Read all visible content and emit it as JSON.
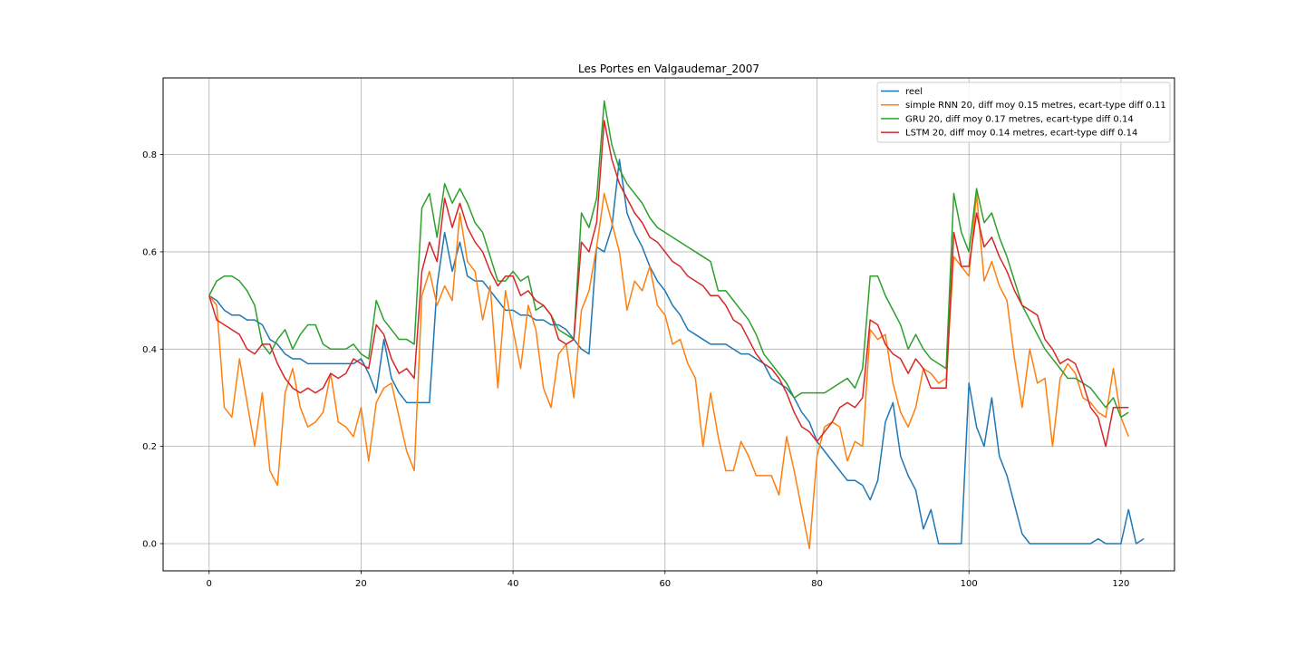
{
  "chart_data": {
    "type": "line",
    "title": "Les Portes en Valgaudemar_2007",
    "xlabel": "",
    "ylabel": "",
    "xlim": [
      -6.05,
      127.05
    ],
    "ylim": [
      -0.0559,
      0.9576
    ],
    "xticks": [
      0,
      20,
      40,
      60,
      80,
      100,
      120
    ],
    "xtick_labels": [
      "0",
      "20",
      "40",
      "60",
      "80",
      "100",
      "120"
    ],
    "yticks": [
      0.0,
      0.2,
      0.4,
      0.6,
      0.8
    ],
    "ytick_labels": [
      "0.0",
      "0.2",
      "0.4",
      "0.6",
      "0.8"
    ],
    "grid": true,
    "legend_position": "top-right",
    "series": [
      {
        "name": "reel",
        "color": "#1f77b4",
        "values": [
          0.51,
          0.5,
          0.48,
          0.47,
          0.47,
          0.46,
          0.46,
          0.45,
          0.42,
          0.41,
          0.39,
          0.38,
          0.38,
          0.37,
          0.37,
          0.37,
          0.37,
          0.37,
          0.37,
          0.37,
          0.38,
          0.35,
          0.31,
          0.42,
          0.34,
          0.31,
          0.29,
          0.29,
          0.29,
          0.29,
          0.53,
          0.64,
          0.56,
          0.62,
          0.55,
          0.54,
          0.54,
          0.52,
          0.5,
          0.48,
          0.48,
          0.47,
          0.47,
          0.46,
          0.46,
          0.45,
          0.45,
          0.44,
          0.42,
          0.4,
          0.39,
          0.61,
          0.6,
          0.65,
          0.79,
          0.68,
          0.64,
          0.61,
          0.57,
          0.54,
          0.52,
          0.49,
          0.47,
          0.44,
          0.43,
          0.42,
          0.41,
          0.41,
          0.41,
          0.4,
          0.39,
          0.39,
          0.38,
          0.37,
          0.34,
          0.33,
          0.32,
          0.3,
          0.27,
          0.25,
          0.21,
          0.19,
          0.17,
          0.15,
          0.13,
          0.13,
          0.12,
          0.09,
          0.13,
          0.25,
          0.29,
          0.18,
          0.14,
          0.11,
          0.03,
          0.07,
          0.0,
          0.0,
          0.0,
          0.0,
          0.33,
          0.24,
          0.2,
          0.3,
          0.18,
          0.14,
          0.08,
          0.02,
          0.0,
          0.0,
          0.0,
          0.0,
          0.0,
          0.0,
          0.0,
          0.0,
          0.0,
          0.01,
          0.0,
          0.0,
          0.0,
          0.07,
          0.0,
          0.01
        ]
      },
      {
        "name": "simple RNN 20, diff moy 0.15 metres, ecart-type diff 0.11",
        "color": "#ff7f0e",
        "values": [
          0.51,
          0.49,
          0.28,
          0.26,
          0.38,
          0.29,
          0.2,
          0.31,
          0.15,
          0.12,
          0.31,
          0.36,
          0.28,
          0.24,
          0.25,
          0.27,
          0.35,
          0.25,
          0.24,
          0.22,
          0.28,
          0.17,
          0.29,
          0.32,
          0.33,
          0.26,
          0.19,
          0.15,
          0.51,
          0.56,
          0.49,
          0.53,
          0.5,
          0.68,
          0.58,
          0.56,
          0.46,
          0.53,
          0.32,
          0.52,
          0.44,
          0.36,
          0.49,
          0.44,
          0.32,
          0.28,
          0.39,
          0.41,
          0.3,
          0.48,
          0.52,
          0.61,
          0.72,
          0.66,
          0.6,
          0.48,
          0.54,
          0.52,
          0.57,
          0.49,
          0.47,
          0.41,
          0.42,
          0.37,
          0.34,
          0.2,
          0.31,
          0.22,
          0.15,
          0.15,
          0.21,
          0.18,
          0.14,
          0.14,
          0.14,
          0.1,
          0.22,
          0.15,
          0.07,
          -0.01,
          0.18,
          0.24,
          0.25,
          0.24,
          0.17,
          0.21,
          0.2,
          0.44,
          0.42,
          0.43,
          0.33,
          0.27,
          0.24,
          0.28,
          0.36,
          0.35,
          0.33,
          0.34,
          0.59,
          0.57,
          0.55,
          0.72,
          0.54,
          0.58,
          0.53,
          0.5,
          0.38,
          0.28,
          0.4,
          0.33,
          0.34,
          0.2,
          0.34,
          0.37,
          0.35,
          0.3,
          0.29,
          0.27,
          0.26,
          0.36,
          0.26,
          0.22
        ]
      },
      {
        "name": "GRU 20, diff moy 0.17 metres, ecart-type diff 0.14",
        "color": "#2ca02c",
        "values": [
          0.51,
          0.54,
          0.55,
          0.55,
          0.54,
          0.52,
          0.49,
          0.41,
          0.39,
          0.42,
          0.44,
          0.4,
          0.43,
          0.45,
          0.45,
          0.41,
          0.4,
          0.4,
          0.4,
          0.41,
          0.39,
          0.38,
          0.5,
          0.46,
          0.44,
          0.42,
          0.42,
          0.41,
          0.69,
          0.72,
          0.63,
          0.74,
          0.7,
          0.73,
          0.7,
          0.66,
          0.64,
          0.59,
          0.54,
          0.54,
          0.56,
          0.54,
          0.55,
          0.48,
          0.49,
          0.47,
          0.44,
          0.43,
          0.42,
          0.68,
          0.65,
          0.71,
          0.91,
          0.82,
          0.77,
          0.74,
          0.72,
          0.7,
          0.67,
          0.65,
          0.64,
          0.63,
          0.62,
          0.61,
          0.6,
          0.59,
          0.58,
          0.52,
          0.52,
          0.5,
          0.48,
          0.46,
          0.43,
          0.39,
          0.37,
          0.35,
          0.33,
          0.3,
          0.31,
          0.31,
          0.31,
          0.31,
          0.32,
          0.33,
          0.34,
          0.32,
          0.36,
          0.55,
          0.55,
          0.51,
          0.48,
          0.45,
          0.4,
          0.43,
          0.4,
          0.38,
          0.37,
          0.36,
          0.72,
          0.64,
          0.6,
          0.73,
          0.66,
          0.68,
          0.63,
          0.59,
          0.54,
          0.49,
          0.46,
          0.43,
          0.4,
          0.38,
          0.36,
          0.34,
          0.34,
          0.33,
          0.32,
          0.3,
          0.28,
          0.3,
          0.26,
          0.27
        ]
      },
      {
        "name": "LSTM 20, diff moy 0.14 metres, ecart-type diff 0.14",
        "color": "#d62728",
        "values": [
          0.51,
          0.46,
          0.45,
          0.44,
          0.43,
          0.4,
          0.39,
          0.41,
          0.41,
          0.37,
          0.34,
          0.32,
          0.31,
          0.32,
          0.31,
          0.32,
          0.35,
          0.34,
          0.35,
          0.38,
          0.37,
          0.36,
          0.45,
          0.43,
          0.38,
          0.35,
          0.36,
          0.34,
          0.56,
          0.62,
          0.58,
          0.71,
          0.65,
          0.7,
          0.65,
          0.62,
          0.6,
          0.56,
          0.53,
          0.55,
          0.55,
          0.51,
          0.52,
          0.5,
          0.49,
          0.47,
          0.42,
          0.41,
          0.42,
          0.62,
          0.6,
          0.66,
          0.87,
          0.79,
          0.74,
          0.71,
          0.68,
          0.66,
          0.63,
          0.62,
          0.6,
          0.58,
          0.57,
          0.55,
          0.54,
          0.53,
          0.51,
          0.51,
          0.49,
          0.46,
          0.45,
          0.42,
          0.39,
          0.37,
          0.36,
          0.34,
          0.31,
          0.27,
          0.24,
          0.23,
          0.21,
          0.23,
          0.25,
          0.28,
          0.29,
          0.28,
          0.3,
          0.46,
          0.45,
          0.41,
          0.39,
          0.38,
          0.35,
          0.38,
          0.36,
          0.32,
          0.32,
          0.32,
          0.64,
          0.57,
          0.57,
          0.68,
          0.61,
          0.63,
          0.59,
          0.56,
          0.52,
          0.49,
          0.48,
          0.47,
          0.42,
          0.4,
          0.37,
          0.38,
          0.37,
          0.33,
          0.28,
          0.26,
          0.2,
          0.28,
          0.28,
          0.28
        ]
      }
    ]
  }
}
